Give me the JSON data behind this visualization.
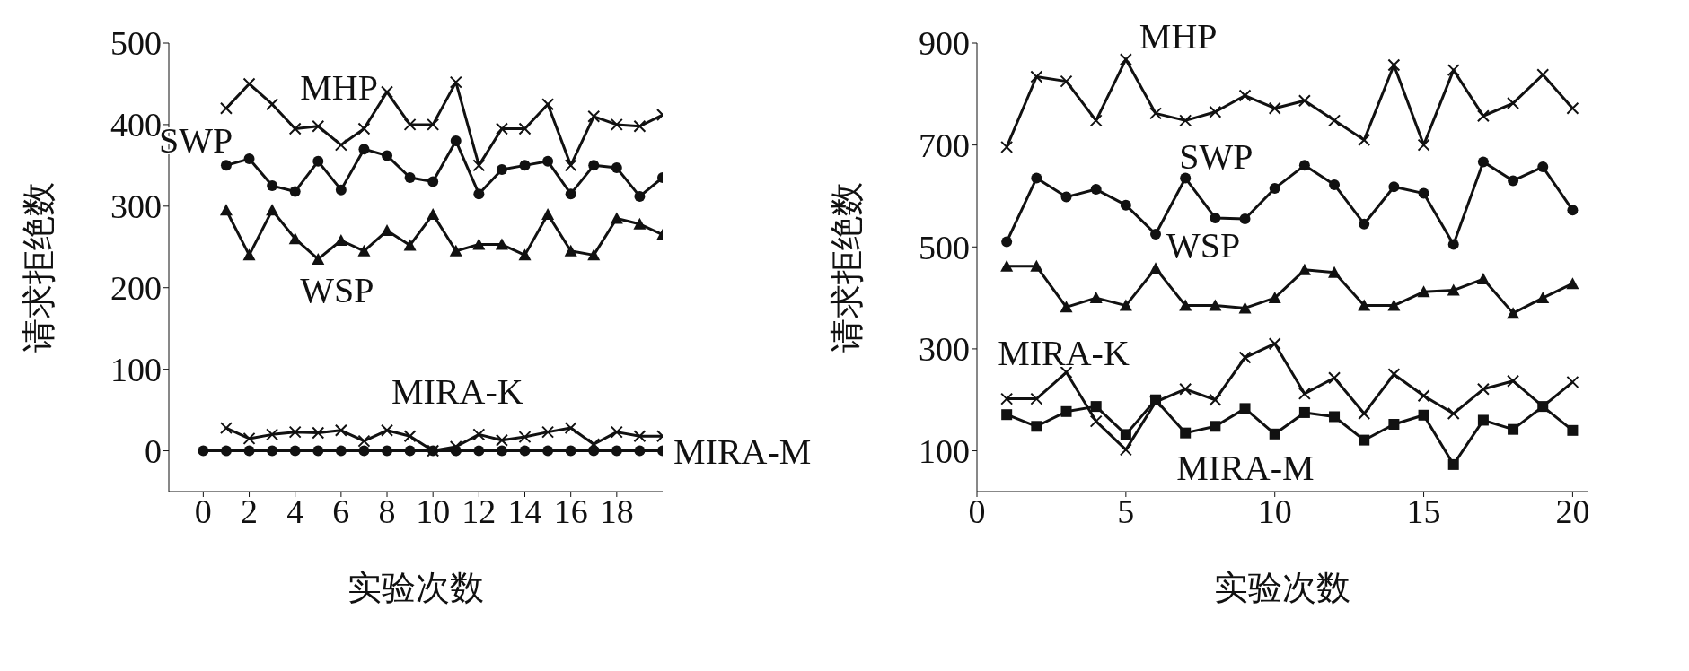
{
  "chart_data": [
    {
      "type": "line",
      "xlabel": "实验次数",
      "ylabel": "请求拒绝数",
      "x": [
        1,
        2,
        3,
        4,
        5,
        6,
        7,
        8,
        9,
        10,
        11,
        12,
        13,
        14,
        15,
        16,
        17,
        18,
        19,
        20
      ],
      "xlim": [
        -1.5,
        20
      ],
      "xticks": [
        0,
        2,
        4,
        6,
        8,
        10,
        12,
        14,
        16,
        18
      ],
      "ylim": [
        -50,
        500
      ],
      "yticks": [
        0,
        100,
        200,
        300,
        400,
        500
      ],
      "series": [
        {
          "name": "MHP",
          "color": "#111111",
          "marker": "cross",
          "values": [
            420,
            450,
            425,
            395,
            398,
            375,
            395,
            440,
            400,
            400,
            452,
            350,
            395,
            395,
            425,
            350,
            410,
            400,
            398,
            412
          ]
        },
        {
          "name": "SWP",
          "color": "#111111",
          "marker": "circle",
          "values": [
            350,
            358,
            325,
            318,
            355,
            320,
            370,
            362,
            335,
            330,
            380,
            315,
            345,
            350,
            355,
            315,
            350,
            347,
            312,
            335
          ]
        },
        {
          "name": "WSP",
          "color": "#111111",
          "marker": "triangle",
          "values": [
            295,
            240,
            295,
            260,
            235,
            258,
            245,
            270,
            252,
            290,
            245,
            253,
            253,
            240,
            290,
            245,
            240,
            285,
            278,
            265
          ]
        },
        {
          "name": "MIRA-M",
          "color": "#111111",
          "marker": "circle",
          "x": [
            0,
            1,
            2,
            3,
            4,
            5,
            6,
            7,
            8,
            9,
            10,
            11,
            12,
            13,
            14,
            15,
            16,
            17,
            18,
            19,
            20
          ],
          "values": [
            0,
            0,
            0,
            0,
            0,
            0,
            0,
            0,
            0,
            0,
            0,
            0,
            0,
            0,
            0,
            0,
            0,
            0,
            0,
            0,
            0
          ]
        },
        {
          "name": "MIRA-K",
          "color": "#111111",
          "marker": "cross",
          "values": [
            28,
            15,
            20,
            23,
            22,
            25,
            12,
            25,
            18,
            0,
            5,
            20,
            13,
            17,
            23,
            28,
            8,
            23,
            18,
            18
          ]
        }
      ]
    },
    {
      "type": "line",
      "xlabel": "实验次数",
      "ylabel": "请求拒绝数",
      "x": [
        1,
        2,
        3,
        4,
        5,
        6,
        7,
        8,
        9,
        10,
        11,
        12,
        13,
        14,
        15,
        16,
        17,
        18,
        19,
        20
      ],
      "xlim": [
        0,
        20.5
      ],
      "xticks": [
        0,
        5,
        10,
        15,
        20
      ],
      "ylim": [
        20,
        900
      ],
      "yticks": [
        100,
        300,
        500,
        700,
        900
      ],
      "series": [
        {
          "name": "MHP",
          "color": "#111111",
          "marker": "cross",
          "values": [
            696,
            834,
            825,
            748,
            868,
            762,
            748,
            765,
            797,
            772,
            787,
            748,
            710,
            857,
            700,
            847,
            757,
            782,
            838,
            772
          ]
        },
        {
          "name": "SWP",
          "color": "#111111",
          "marker": "circle",
          "values": [
            510,
            635,
            598,
            613,
            582,
            525,
            635,
            557,
            555,
            615,
            660,
            622,
            545,
            618,
            605,
            505,
            667,
            630,
            657,
            572
          ]
        },
        {
          "name": "WSP",
          "color": "#111111",
          "marker": "triangle",
          "values": [
            462,
            462,
            382,
            400,
            385,
            458,
            385,
            385,
            380,
            400,
            455,
            450,
            385,
            385,
            412,
            415,
            437,
            370,
            400,
            428
          ]
        },
        {
          "name": "MIRA-K",
          "color": "#111111",
          "marker": "cross",
          "values": [
            202,
            202,
            254,
            158,
            102,
            196,
            221,
            200,
            283,
            310,
            212,
            243,
            173,
            250,
            208,
            173,
            221,
            237,
            187,
            235
          ]
        },
        {
          "name": "MIRA-M",
          "color": "#111111",
          "marker": "square",
          "values": [
            171,
            148,
            177,
            187,
            132,
            200,
            135,
            148,
            183,
            133,
            175,
            167,
            121,
            152,
            170,
            73,
            160,
            142,
            187,
            140
          ]
        }
      ]
    }
  ]
}
